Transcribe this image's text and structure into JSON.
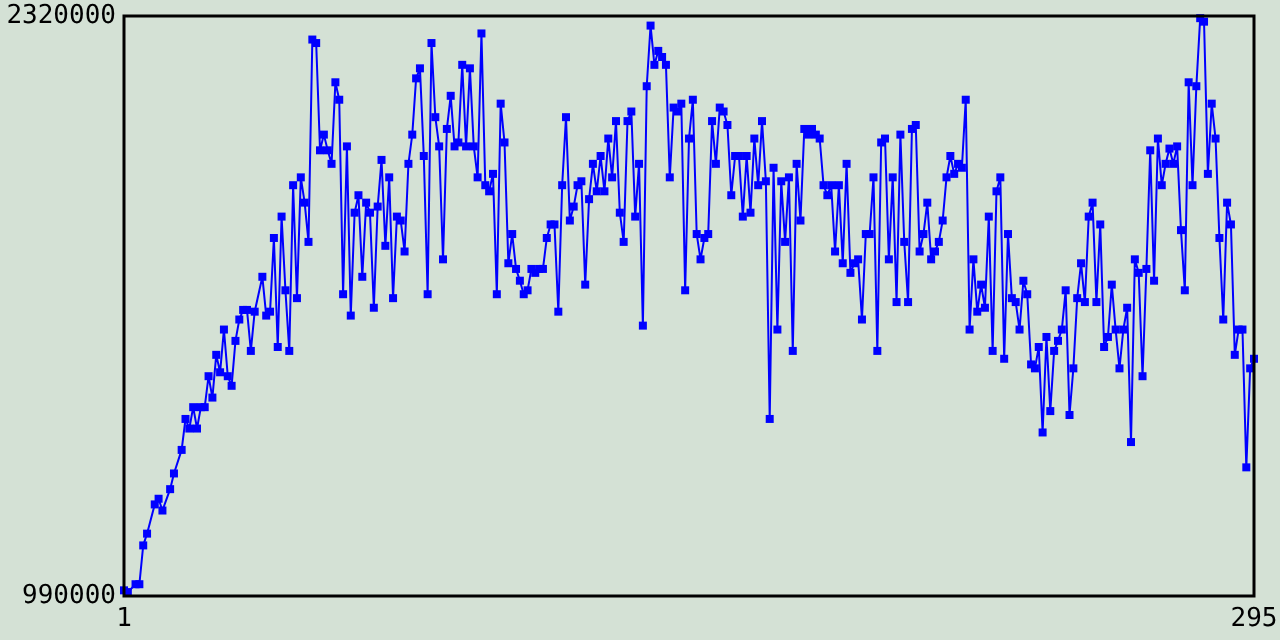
{
  "chart_data": {
    "type": "line",
    "xlim": [
      1,
      295
    ],
    "xticks": [
      1,
      295
    ],
    "ylim": [
      990000,
      2320000
    ],
    "yticks": [
      990000,
      2320000
    ],
    "marker": "square",
    "line_style": "solid",
    "series": [
      {
        "color": "#0000ff",
        "x": [
          1,
          2,
          4,
          5,
          6,
          7,
          9,
          10,
          11,
          13,
          14,
          16,
          17,
          18,
          19,
          20,
          21,
          22,
          23,
          24,
          25,
          26,
          27,
          28,
          29,
          30,
          31,
          32,
          33,
          34,
          35,
          37,
          38,
          39,
          40,
          41,
          42,
          43,
          44,
          45,
          46,
          47,
          48,
          49,
          50,
          51,
          52,
          53,
          54,
          55,
          56,
          57,
          58,
          59,
          60,
          61,
          62,
          63,
          64,
          65,
          66,
          67,
          68,
          69,
          70,
          71,
          72,
          73,
          74,
          75,
          76,
          77,
          78,
          79,
          80,
          81,
          82,
          83,
          84,
          85,
          86,
          87,
          88,
          89,
          90,
          91,
          92,
          93,
          94,
          95,
          96,
          97,
          98,
          99,
          100,
          101,
          102,
          103,
          104,
          105,
          106,
          107,
          108,
          109,
          110,
          111,
          112,
          113,
          114,
          115,
          116,
          117,
          118,
          119,
          120,
          121,
          122,
          123,
          124,
          125,
          126,
          127,
          128,
          129,
          130,
          131,
          132,
          133,
          134,
          135,
          136,
          137,
          138,
          139,
          140,
          141,
          142,
          143,
          144,
          145,
          146,
          147,
          148,
          149,
          150,
          151,
          152,
          153,
          154,
          155,
          156,
          157,
          158,
          159,
          160,
          161,
          162,
          163,
          164,
          165,
          166,
          167,
          168,
          169,
          170,
          171,
          172,
          173,
          174,
          175,
          176,
          177,
          178,
          179,
          180,
          181,
          182,
          183,
          184,
          185,
          186,
          187,
          188,
          189,
          190,
          191,
          192,
          193,
          194,
          195,
          196,
          197,
          198,
          199,
          200,
          201,
          202,
          203,
          204,
          205,
          206,
          207,
          208,
          209,
          210,
          211,
          212,
          213,
          214,
          215,
          216,
          217,
          218,
          219,
          220,
          221,
          222,
          223,
          224,
          225,
          226,
          227,
          228,
          229,
          230,
          231,
          232,
          233,
          234,
          235,
          236,
          237,
          238,
          239,
          240,
          241,
          242,
          243,
          244,
          245,
          246,
          247,
          248,
          249,
          250,
          251,
          252,
          253,
          254,
          255,
          256,
          257,
          258,
          259,
          260,
          261,
          262,
          263,
          264,
          265,
          266,
          267,
          268,
          269,
          270,
          271,
          272,
          273,
          274,
          275,
          276,
          277,
          278,
          279,
          280,
          281,
          282,
          283,
          284,
          285,
          286,
          287,
          288,
          289,
          290,
          291,
          292,
          293,
          294,
          295
        ],
        "values": [
          1003000,
          999000,
          1017000,
          1017000,
          1106000,
          1133000,
          1200000,
          1213000,
          1186000,
          1235000,
          1271000,
          1325000,
          1396000,
          1374000,
          1423000,
          1374000,
          1423000,
          1423000,
          1494000,
          1445000,
          1543000,
          1503000,
          1601000,
          1494000,
          1472000,
          1575000,
          1624000,
          1646000,
          1646000,
          1552000,
          1642000,
          1722000,
          1633000,
          1642000,
          1811000,
          1561000,
          1860000,
          1691000,
          1552000,
          1932000,
          1673000,
          1950000,
          1892000,
          1802000,
          2266000,
          2258000,
          2012000,
          2048000,
          2012000,
          1981000,
          2168000,
          2128000,
          1682000,
          2021000,
          1633000,
          1869000,
          1909000,
          1722000,
          1892000,
          1869000,
          1651000,
          1883000,
          1990000,
          1793000,
          1950000,
          1673000,
          1860000,
          1851000,
          1780000,
          1981000,
          2048000,
          2177000,
          2200000,
          1999000,
          1682000,
          2258000,
          2088000,
          2021000,
          1762000,
          2061000,
          2137000,
          2021000,
          2030000,
          2208000,
          2021000,
          2200000,
          2021000,
          1950000,
          2280000,
          1932000,
          1918000,
          1958000,
          1682000,
          2119000,
          2030000,
          1753000,
          1820000,
          1740000,
          1713000,
          1682000,
          1691000,
          1740000,
          1731000,
          1740000,
          1740000,
          1811000,
          1842000,
          1842000,
          1642000,
          1932000,
          2088000,
          1851000,
          1883000,
          1932000,
          1941000,
          1704000,
          1900000,
          1981000,
          1918000,
          1999000,
          1918000,
          2039000,
          1950000,
          2079000,
          1869000,
          1802000,
          2079000,
          2101000,
          1860000,
          1981000,
          1610000,
          2159000,
          2298000,
          2208000,
          2240000,
          2226000,
          2208000,
          1950000,
          2110000,
          2101000,
          2119000,
          1691000,
          2039000,
          2128000,
          1820000,
          1762000,
          1811000,
          1820000,
          2079000,
          1981000,
          2110000,
          2101000,
          2070000,
          1909000,
          1999000,
          1999000,
          1860000,
          1999000,
          1869000,
          2039000,
          1932000,
          2079000,
          1941000,
          1396000,
          1972000,
          1601000,
          1941000,
          1802000,
          1950000,
          1552000,
          1981000,
          1851000,
          2061000,
          2048000,
          2061000,
          2048000,
          2039000,
          1932000,
          1909000,
          1932000,
          1780000,
          1932000,
          1753000,
          1981000,
          1731000,
          1753000,
          1762000,
          1624000,
          1820000,
          1820000,
          1950000,
          1552000,
          2030000,
          2039000,
          1762000,
          1950000,
          1664000,
          2048000,
          1802000,
          1664000,
          2061000,
          2070000,
          1780000,
          1820000,
          1892000,
          1762000,
          1780000,
          1802000,
          1851000,
          1950000,
          1999000,
          1958000,
          1981000,
          1972000,
          2128000,
          1601000,
          1762000,
          1642000,
          1704000,
          1651000,
          1860000,
          1552000,
          1918000,
          1950000,
          1534000,
          1820000,
          1673000,
          1664000,
          1601000,
          1713000,
          1682000,
          1521000,
          1512000,
          1561000,
          1365000,
          1584000,
          1414000,
          1552000,
          1575000,
          1601000,
          1691000,
          1405000,
          1512000,
          1673000,
          1753000,
          1664000,
          1860000,
          1892000,
          1664000,
          1842000,
          1561000,
          1584000,
          1704000,
          1601000,
          1512000,
          1601000,
          1651000,
          1343000,
          1762000,
          1731000,
          1494000,
          1740000,
          2012000,
          1713000,
          2039000,
          1932000,
          1981000,
          2016000,
          1981000,
          2021000,
          1829000,
          1691000,
          2168000,
          1932000,
          2159000,
          2315000,
          2307000,
          1958000,
          2119000,
          2039000,
          1811000,
          1624000,
          1892000,
          1842000,
          1543000,
          1601000,
          1601000,
          1285000,
          1512000,
          1534000
        ]
      }
    ]
  }
}
